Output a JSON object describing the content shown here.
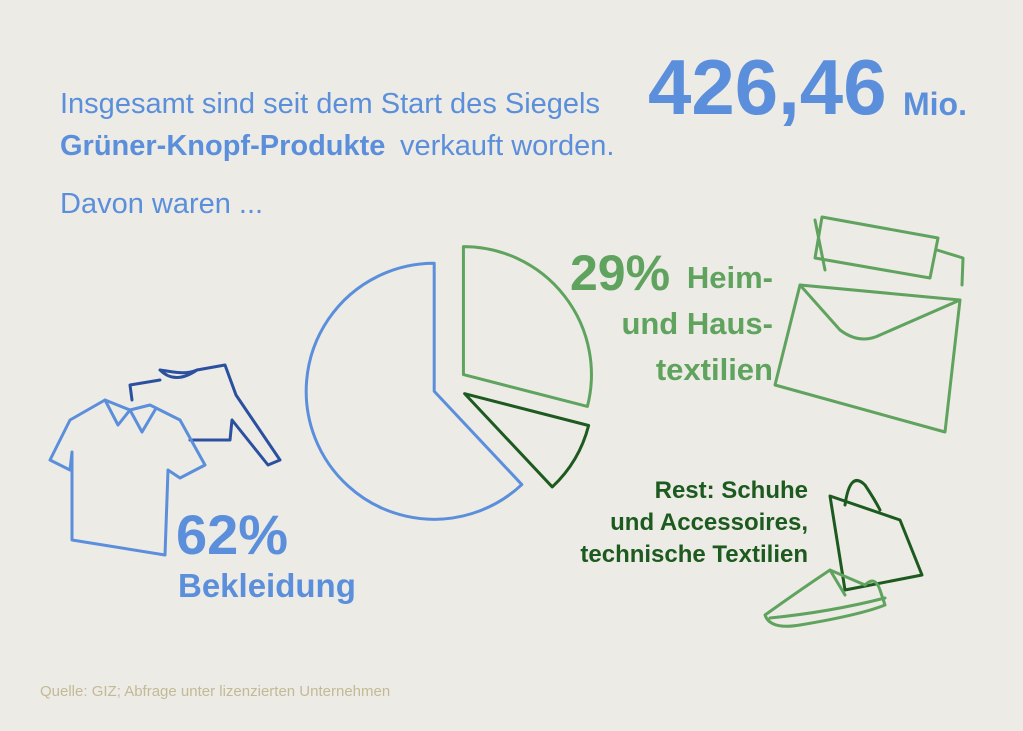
{
  "chart_data": {
    "type": "pie",
    "title": {
      "intro": "Insgesamt sind seit dem Start des Siegels",
      "figure": "426,46",
      "unit": "Mio.",
      "highlight": "Grüner-Knopf-Produkte",
      "outro": "verkauft worden."
    },
    "subtitle": "Davon waren ...",
    "categories": [
      "Bekleidung",
      "Heim-\nund Haus-\ntextilien",
      "Rest: Schuhe\nund Accessoires,\ntechnische Textilien"
    ],
    "values": [
      62,
      29,
      9
    ],
    "value_labels": [
      "62%",
      "29%",
      null
    ],
    "colors": [
      "#5b8fdc",
      "#5fa35f",
      "#1d5a1f"
    ],
    "source": "Quelle: GIZ; Abfrage unter lizenzierten Unternehmen"
  }
}
